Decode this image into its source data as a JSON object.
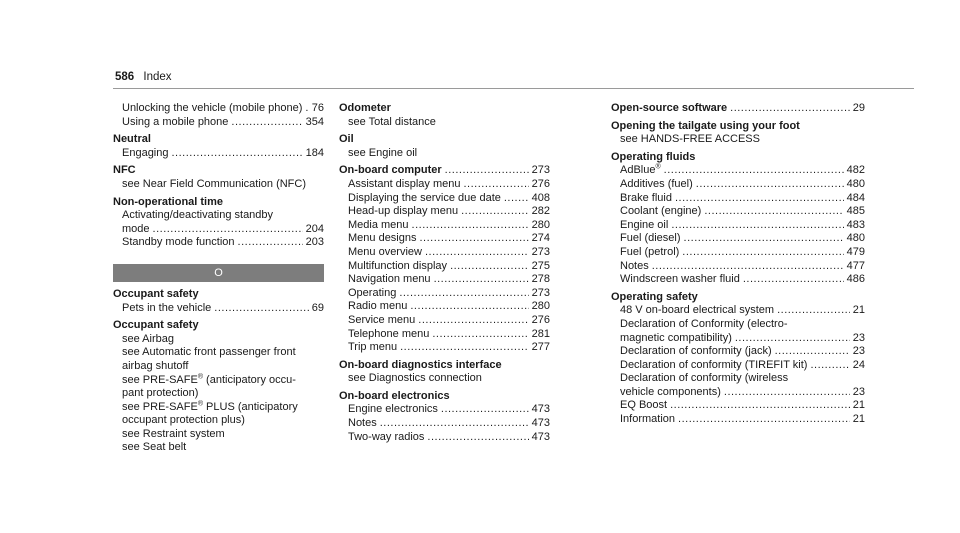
{
  "header": {
    "page_number": "586",
    "title": "Index"
  },
  "col1_a": [
    {
      "kind": "entry",
      "sub": true,
      "text": "Unlocking the vehicle (mobile phone)",
      "page": "76"
    },
    {
      "kind": "entry",
      "sub": true,
      "text": "Using a mobile phone",
      "page": "354"
    },
    {
      "kind": "head",
      "text": "Neutral",
      "page": ""
    },
    {
      "kind": "entry",
      "sub": true,
      "text": "Engaging",
      "page": "184"
    },
    {
      "kind": "head",
      "text": "NFC",
      "page": ""
    },
    {
      "kind": "plain",
      "sub": true,
      "text": "see Near Field Communication (NFC)",
      "page": ""
    },
    {
      "kind": "head",
      "text": "Non-operational time",
      "page": ""
    },
    {
      "kind": "plain",
      "sub": true,
      "text": "Activating/deactivating standby",
      "page": ""
    },
    {
      "kind": "entry",
      "sub": true,
      "text": "mode",
      "page": "204"
    },
    {
      "kind": "entry",
      "sub": true,
      "text": "Standby mode function",
      "page": "203"
    }
  ],
  "letter_o": "O",
  "col1_b": [
    {
      "kind": "head",
      "text": "Occupant safety",
      "page": ""
    },
    {
      "kind": "entry",
      "sub": true,
      "text": "Pets in the vehicle",
      "page": "69"
    },
    {
      "kind": "head",
      "text": "Occupant safety",
      "page": ""
    },
    {
      "kind": "plain",
      "sub": true,
      "text": "see Airbag",
      "page": ""
    },
    {
      "kind": "plain",
      "sub": true,
      "text": "see Automatic front passenger front",
      "page": ""
    },
    {
      "kind": "plain",
      "sub": true,
      "text": "airbag shutoff",
      "page": ""
    },
    {
      "kind": "plain",
      "sub": true,
      "text": "see PRE-SAFE® (anticipatory occu-",
      "page": ""
    },
    {
      "kind": "plain",
      "sub": true,
      "text": "pant protection)",
      "page": ""
    },
    {
      "kind": "plain",
      "sub": true,
      "text": "see PRE-SAFE® PLUS (anticipatory",
      "page": ""
    },
    {
      "kind": "plain",
      "sub": true,
      "text": "occupant protection plus)",
      "page": ""
    },
    {
      "kind": "plain",
      "sub": true,
      "text": "see Restraint system",
      "page": ""
    },
    {
      "kind": "plain",
      "sub": true,
      "text": "see Seat belt",
      "page": ""
    }
  ],
  "col2": [
    {
      "kind": "head",
      "text": "Odometer",
      "page": ""
    },
    {
      "kind": "plain",
      "sub": true,
      "text": "see Total distance",
      "page": ""
    },
    {
      "kind": "head",
      "text": "Oil",
      "page": ""
    },
    {
      "kind": "plain",
      "sub": true,
      "text": "see Engine oil",
      "page": ""
    },
    {
      "kind": "headentry",
      "text": "On-board computer",
      "page": "273"
    },
    {
      "kind": "entry",
      "sub": true,
      "text": "Assistant display menu",
      "page": "276"
    },
    {
      "kind": "entry",
      "sub": true,
      "text": "Displaying the service due date",
      "page": "408"
    },
    {
      "kind": "entry",
      "sub": true,
      "text": "Head-up display menu",
      "page": "282"
    },
    {
      "kind": "entry",
      "sub": true,
      "text": "Media menu",
      "page": "280"
    },
    {
      "kind": "entry",
      "sub": true,
      "text": "Menu designs",
      "page": "274"
    },
    {
      "kind": "entry",
      "sub": true,
      "text": "Menu overview",
      "page": "273"
    },
    {
      "kind": "entry",
      "sub": true,
      "text": "Multifunction display",
      "page": "275"
    },
    {
      "kind": "entry",
      "sub": true,
      "text": "Navigation menu",
      "page": "278"
    },
    {
      "kind": "entry",
      "sub": true,
      "text": "Operating",
      "page": "273"
    },
    {
      "kind": "entry",
      "sub": true,
      "text": "Radio menu",
      "page": "280"
    },
    {
      "kind": "entry",
      "sub": true,
      "text": "Service menu",
      "page": "276"
    },
    {
      "kind": "entry",
      "sub": true,
      "text": "Telephone menu",
      "page": "281"
    },
    {
      "kind": "entry",
      "sub": true,
      "text": "Trip menu",
      "page": "277"
    },
    {
      "kind": "head",
      "text": "On-board diagnostics interface",
      "page": ""
    },
    {
      "kind": "plain",
      "sub": true,
      "text": "see Diagnostics connection",
      "page": ""
    },
    {
      "kind": "head",
      "text": "On-board electronics",
      "page": ""
    },
    {
      "kind": "entry",
      "sub": true,
      "text": "Engine electronics",
      "page": "473"
    },
    {
      "kind": "entry",
      "sub": true,
      "text": "Notes",
      "page": "473"
    },
    {
      "kind": "entry",
      "sub": true,
      "text": "Two-way radios",
      "page": "473"
    }
  ],
  "col3": [
    {
      "kind": "headentry",
      "text": "Open-source software",
      "page": "29"
    },
    {
      "kind": "head",
      "text": "Opening the tailgate using your foot",
      "page": ""
    },
    {
      "kind": "plain",
      "sub": true,
      "text": "see HANDS-FREE ACCESS",
      "page": ""
    },
    {
      "kind": "head",
      "text": "Operating fluids",
      "page": ""
    },
    {
      "kind": "entry",
      "sub": true,
      "text": "AdBlue®",
      "page": "482"
    },
    {
      "kind": "entry",
      "sub": true,
      "text": "Additives (fuel)",
      "page": "480"
    },
    {
      "kind": "entry",
      "sub": true,
      "text": "Brake fluid",
      "page": "484"
    },
    {
      "kind": "entry",
      "sub": true,
      "text": "Coolant (engine)",
      "page": "485"
    },
    {
      "kind": "entry",
      "sub": true,
      "text": "Engine oil",
      "page": "483"
    },
    {
      "kind": "entry",
      "sub": true,
      "text": "Fuel (diesel)",
      "page": "480"
    },
    {
      "kind": "entry",
      "sub": true,
      "text": "Fuel (petrol)",
      "page": "479"
    },
    {
      "kind": "entry",
      "sub": true,
      "text": "Notes",
      "page": "477"
    },
    {
      "kind": "entry",
      "sub": true,
      "text": "Windscreen washer fluid",
      "page": "486"
    },
    {
      "kind": "head",
      "text": "Operating safety",
      "page": ""
    },
    {
      "kind": "entry",
      "sub": true,
      "text": "48 V on-board electrical system",
      "page": "21"
    },
    {
      "kind": "plain",
      "sub": true,
      "text": "Declaration of Conformity (electro-",
      "page": ""
    },
    {
      "kind": "entry",
      "sub": true,
      "text": "magnetic compatibility)",
      "page": "23"
    },
    {
      "kind": "entry",
      "sub": true,
      "text": "Declaration of conformity (jack)",
      "page": "23"
    },
    {
      "kind": "entry",
      "sub": true,
      "text": "Declaration of conformity (TIREFIT kit)",
      "page": "24"
    },
    {
      "kind": "plain",
      "sub": true,
      "text": "Declaration of conformity (wireless",
      "page": ""
    },
    {
      "kind": "entry",
      "sub": true,
      "text": "vehicle components)",
      "page": "23"
    },
    {
      "kind": "entry",
      "sub": true,
      "text": "EQ Boost",
      "page": "21"
    },
    {
      "kind": "entry",
      "sub": true,
      "text": "Information",
      "page": "21"
    }
  ]
}
